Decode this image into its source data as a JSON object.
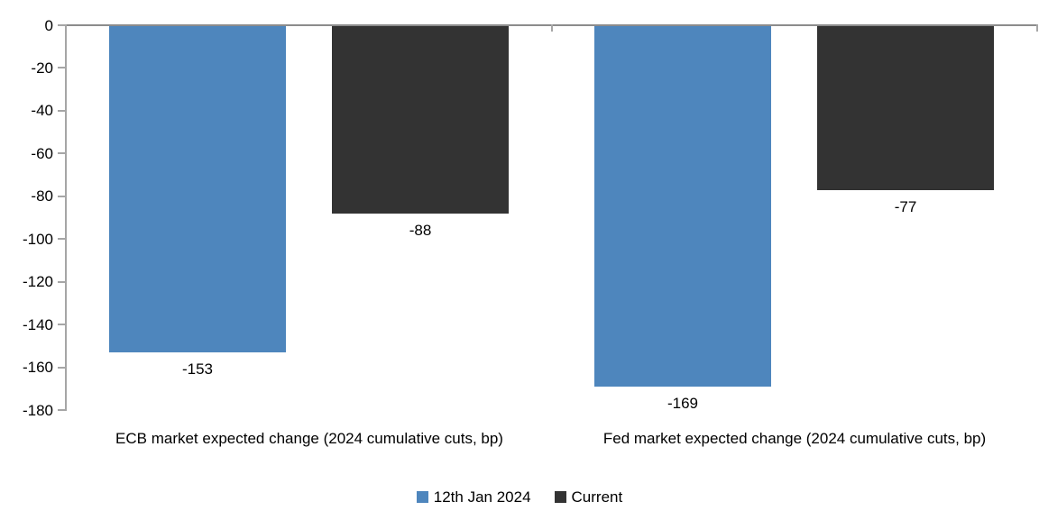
{
  "chart_data": {
    "type": "bar",
    "title": "",
    "xlabel": "",
    "ylabel": "",
    "categories": [
      "ECB market expected change (2024 cumulative cuts, bp)",
      "Fed market expected change (2024 cumulative cuts, bp)"
    ],
    "series": [
      {
        "name": "12th Jan 2024",
        "color": "#4E86BD",
        "values": [
          -153,
          -169
        ],
        "labels": [
          "-153",
          "-169"
        ]
      },
      {
        "name": "Current",
        "color": "#333333",
        "values": [
          -88,
          -77
        ],
        "labels": [
          "-88",
          "-77"
        ]
      }
    ],
    "ylim": [
      -180,
      0
    ],
    "yticks": [
      0,
      -20,
      -40,
      -60,
      -80,
      -100,
      -120,
      -140,
      -160,
      -180
    ],
    "ytick_labels": [
      "0",
      "-20",
      "-40",
      "-60",
      "-80",
      "-100",
      "-120",
      "-140",
      "-160",
      "-180"
    ],
    "grid": false,
    "legend_position": "bottom",
    "axis_color": "#8C8C8C",
    "tick_color": "#A6A6A6",
    "text_color": "#000000"
  }
}
